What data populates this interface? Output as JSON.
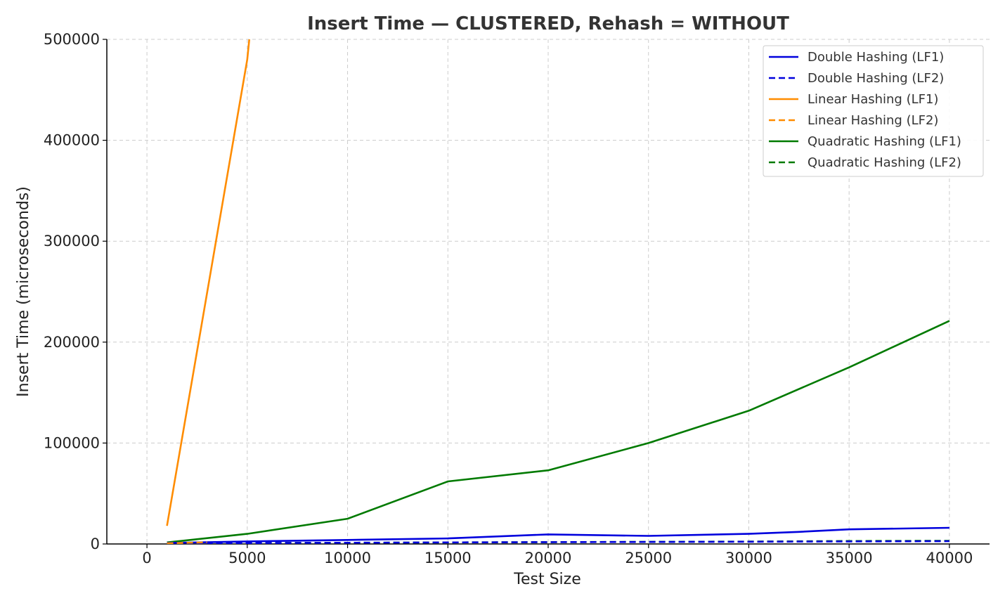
{
  "chart_data": {
    "type": "line",
    "title": "Insert Time — CLUSTERED, Rehash = WITHOUT",
    "xlabel": "Test Size",
    "ylabel": "Insert Time (microseconds)",
    "xlim": [
      -2000,
      42000
    ],
    "ylim": [
      0,
      500000
    ],
    "xticks": [
      0,
      5000,
      10000,
      15000,
      20000,
      25000,
      30000,
      35000,
      40000
    ],
    "yticks": [
      0,
      100000,
      200000,
      300000,
      400000,
      500000
    ],
    "grid": true,
    "legend_position": "top-right",
    "series": [
      {
        "name": "Double Hashing (LF1)",
        "color": "#0000dd",
        "dash": "solid",
        "x": [
          1000,
          5000,
          10000,
          15000,
          20000,
          25000,
          30000,
          32500,
          35000,
          40000
        ],
        "y": [
          1000,
          2500,
          4000,
          5500,
          9500,
          8000,
          10000,
          12000,
          14500,
          16000
        ]
      },
      {
        "name": "Double Hashing (LF2)",
        "color": "#0000dd",
        "dash": "dashed",
        "x": [
          1000,
          5000,
          10000,
          15000,
          20000,
          25000,
          30000,
          35000,
          40000
        ],
        "y": [
          500,
          900,
          1200,
          1500,
          1800,
          2000,
          2200,
          2500,
          2800
        ]
      },
      {
        "name": "Linear Hashing (LF1)",
        "color": "#ff8c00",
        "dash": "solid",
        "x": [
          1000,
          5000,
          5100
        ],
        "y": [
          18000,
          480000,
          500000
        ]
      },
      {
        "name": "Linear Hashing (LF2)",
        "color": "#ff8c00",
        "dash": "dashed",
        "x": [
          1000,
          2000,
          3000
        ],
        "y": [
          600,
          1200,
          1600
        ]
      },
      {
        "name": "Quadratic Hashing (LF1)",
        "color": "#007a00",
        "dash": "solid",
        "x": [
          1000,
          5000,
          10000,
          15000,
          20000,
          25000,
          30000,
          35000,
          40000
        ],
        "y": [
          1500,
          10000,
          25000,
          62000,
          73000,
          100000,
          132000,
          175000,
          221000
        ]
      },
      {
        "name": "Quadratic Hashing (LF2)",
        "color": "#007a00",
        "dash": "dashed",
        "x": [
          1000,
          5000,
          10000,
          15000,
          20000,
          25000,
          30000,
          35000,
          40000
        ],
        "y": [
          700,
          1000,
          1200,
          1500,
          1800,
          2100,
          2400,
          2900,
          3100
        ]
      }
    ]
  }
}
